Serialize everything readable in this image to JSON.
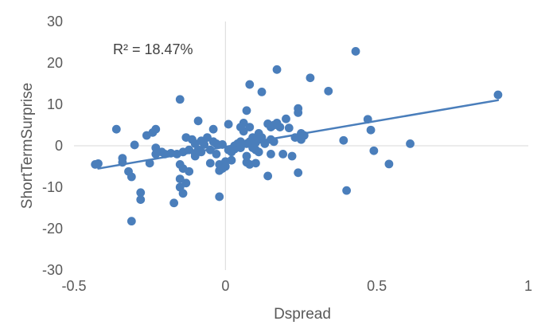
{
  "chart_data": {
    "type": "scatter",
    "xlabel": "Dspread",
    "ylabel": "ShortTermSurprise",
    "xlim": [
      -0.5,
      1
    ],
    "ylim": [
      -30,
      30
    ],
    "x_ticks": [
      -0.5,
      0,
      0.5,
      1
    ],
    "x_tick_labels": [
      "-0.5",
      "0",
      "0.5",
      "1"
    ],
    "y_ticks": [
      -30,
      -20,
      -10,
      0,
      10,
      20,
      30
    ],
    "y_tick_labels": [
      "-30",
      "-20",
      "-10",
      "0",
      "10",
      "20",
      "30"
    ],
    "grid": false,
    "annotation": "R² = 18.47%",
    "colors": {
      "marker": "#4a7ebb",
      "trendline": "#4a7ebb",
      "axis": "#d9d9d9"
    },
    "trendline": {
      "x": [
        -0.42,
        0.9
      ],
      "y": [
        -5.5,
        11
      ]
    },
    "points": [
      {
        "x": -0.43,
        "y": -4.5
      },
      {
        "x": -0.42,
        "y": -4.3
      },
      {
        "x": -0.36,
        "y": 4.0
      },
      {
        "x": -0.34,
        "y": -3.0
      },
      {
        "x": -0.34,
        "y": -4.0
      },
      {
        "x": -0.32,
        "y": -6.2
      },
      {
        "x": -0.31,
        "y": -7.5
      },
      {
        "x": -0.31,
        "y": -18.2
      },
      {
        "x": -0.3,
        "y": 0.2
      },
      {
        "x": -0.28,
        "y": -11.3
      },
      {
        "x": -0.28,
        "y": -13.0
      },
      {
        "x": -0.26,
        "y": 2.5
      },
      {
        "x": -0.25,
        "y": -4.2
      },
      {
        "x": -0.24,
        "y": 3.2
      },
      {
        "x": -0.23,
        "y": 4.0
      },
      {
        "x": -0.23,
        "y": -0.5
      },
      {
        "x": -0.23,
        "y": -2.0
      },
      {
        "x": -0.21,
        "y": -1.5
      },
      {
        "x": -0.2,
        "y": -2.0
      },
      {
        "x": -0.18,
        "y": -1.8
      },
      {
        "x": -0.17,
        "y": -13.8
      },
      {
        "x": -0.16,
        "y": -2.0
      },
      {
        "x": -0.15,
        "y": 11.2
      },
      {
        "x": -0.15,
        "y": -8.0
      },
      {
        "x": -0.15,
        "y": -4.5
      },
      {
        "x": -0.15,
        "y": -10.0
      },
      {
        "x": -0.14,
        "y": -11.5
      },
      {
        "x": -0.14,
        "y": -1.5
      },
      {
        "x": -0.14,
        "y": -5.5
      },
      {
        "x": -0.13,
        "y": 2.0
      },
      {
        "x": -0.13,
        "y": -9.0
      },
      {
        "x": -0.12,
        "y": -6.2
      },
      {
        "x": -0.12,
        "y": -1.0
      },
      {
        "x": -0.11,
        "y": 1.5
      },
      {
        "x": -0.1,
        "y": -1.8
      },
      {
        "x": -0.1,
        "y": -2.5
      },
      {
        "x": -0.1,
        "y": 0.5
      },
      {
        "x": -0.09,
        "y": 6.0
      },
      {
        "x": -0.09,
        "y": -1.0
      },
      {
        "x": -0.08,
        "y": 1.2
      },
      {
        "x": -0.08,
        "y": -1.5
      },
      {
        "x": -0.07,
        "y": 0.3
      },
      {
        "x": -0.06,
        "y": 2.0
      },
      {
        "x": -0.05,
        "y": -1.0
      },
      {
        "x": -0.05,
        "y": -4.2
      },
      {
        "x": -0.04,
        "y": 1.0
      },
      {
        "x": -0.04,
        "y": 4.0
      },
      {
        "x": -0.03,
        "y": -2.0
      },
      {
        "x": -0.03,
        "y": 0.5
      },
      {
        "x": -0.02,
        "y": -6.0
      },
      {
        "x": -0.02,
        "y": -4.5
      },
      {
        "x": -0.02,
        "y": -12.3
      },
      {
        "x": -0.01,
        "y": 0.3
      },
      {
        "x": -0.01,
        "y": -5.5
      },
      {
        "x": 0.0,
        "y": -3.8
      },
      {
        "x": 0.0,
        "y": -5.0
      },
      {
        "x": 0.01,
        "y": 5.2
      },
      {
        "x": 0.01,
        "y": -1.0
      },
      {
        "x": 0.02,
        "y": -3.5
      },
      {
        "x": 0.02,
        "y": -1.5
      },
      {
        "x": 0.03,
        "y": 0.0
      },
      {
        "x": 0.03,
        "y": -0.8
      },
      {
        "x": 0.04,
        "y": -0.3
      },
      {
        "x": 0.04,
        "y": 0.5
      },
      {
        "x": 0.05,
        "y": -0.5
      },
      {
        "x": 0.05,
        "y": 1.0
      },
      {
        "x": 0.05,
        "y": 4.5
      },
      {
        "x": 0.06,
        "y": 5.5
      },
      {
        "x": 0.06,
        "y": 3.5
      },
      {
        "x": 0.07,
        "y": -4.0
      },
      {
        "x": 0.07,
        "y": -2.5
      },
      {
        "x": 0.07,
        "y": 8.5
      },
      {
        "x": 0.07,
        "y": 0.5
      },
      {
        "x": 0.08,
        "y": 14.8
      },
      {
        "x": 0.08,
        "y": 4.5
      },
      {
        "x": 0.08,
        "y": 1.0
      },
      {
        "x": 0.08,
        "y": -4.5
      },
      {
        "x": 0.09,
        "y": -0.5
      },
      {
        "x": 0.09,
        "y": 2.0
      },
      {
        "x": 0.1,
        "y": 0.8
      },
      {
        "x": 0.1,
        "y": -4.2
      },
      {
        "x": 0.1,
        "y": -1.0
      },
      {
        "x": 0.11,
        "y": 3.0
      },
      {
        "x": 0.11,
        "y": -1.5
      },
      {
        "x": 0.11,
        "y": 1.5
      },
      {
        "x": 0.12,
        "y": 13.0
      },
      {
        "x": 0.12,
        "y": 2.0
      },
      {
        "x": 0.13,
        "y": 0.5
      },
      {
        "x": 0.14,
        "y": 5.3
      },
      {
        "x": 0.14,
        "y": -7.3
      },
      {
        "x": 0.15,
        "y": 4.5
      },
      {
        "x": 0.15,
        "y": -2.0
      },
      {
        "x": 0.15,
        "y": 1.5
      },
      {
        "x": 0.16,
        "y": 5.0
      },
      {
        "x": 0.16,
        "y": 1.0
      },
      {
        "x": 0.17,
        "y": 18.4
      },
      {
        "x": 0.17,
        "y": 5.5
      },
      {
        "x": 0.18,
        "y": 4.5
      },
      {
        "x": 0.19,
        "y": -2.0
      },
      {
        "x": 0.2,
        "y": 6.5
      },
      {
        "x": 0.21,
        "y": 4.3
      },
      {
        "x": 0.22,
        "y": -2.5
      },
      {
        "x": 0.23,
        "y": 2.0
      },
      {
        "x": 0.24,
        "y": 8.0
      },
      {
        "x": 0.24,
        "y": 9.0
      },
      {
        "x": 0.24,
        "y": -6.5
      },
      {
        "x": 0.25,
        "y": 3.0
      },
      {
        "x": 0.25,
        "y": 1.5
      },
      {
        "x": 0.26,
        "y": 2.5
      },
      {
        "x": 0.28,
        "y": 16.4
      },
      {
        "x": 0.34,
        "y": 13.2
      },
      {
        "x": 0.39,
        "y": 1.3
      },
      {
        "x": 0.4,
        "y": -10.8
      },
      {
        "x": 0.43,
        "y": 22.8
      },
      {
        "x": 0.47,
        "y": 6.4
      },
      {
        "x": 0.48,
        "y": 3.8
      },
      {
        "x": 0.49,
        "y": -1.2
      },
      {
        "x": 0.54,
        "y": -4.4
      },
      {
        "x": 0.61,
        "y": 0.5
      },
      {
        "x": 0.9,
        "y": 12.3
      }
    ]
  }
}
